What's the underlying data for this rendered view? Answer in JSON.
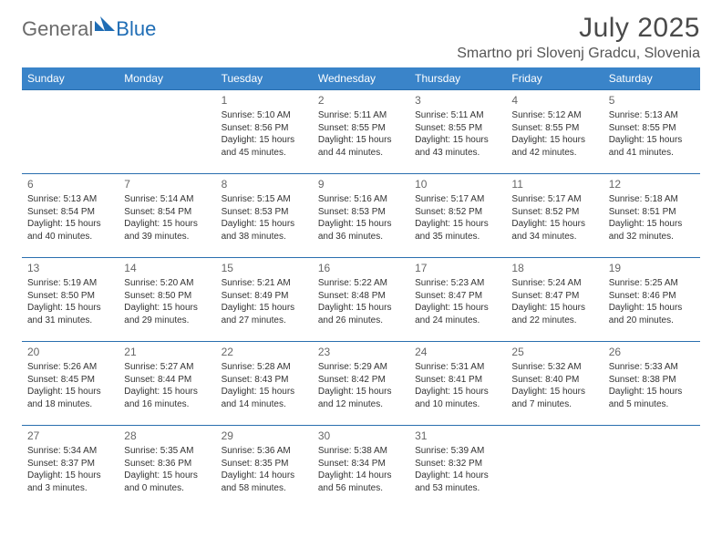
{
  "brand": {
    "part1": "General",
    "part2": "Blue"
  },
  "header": {
    "title": "July 2025",
    "location": "Smartno pri Slovenj Gradcu, Slovenia"
  },
  "colors": {
    "header_bg": "#3a84c9",
    "header_fg": "#ffffff",
    "row_border": "#2a6faf",
    "text": "#333333",
    "daynum": "#676767",
    "logo_gray": "#6b6b6b",
    "logo_blue": "#1f6db5",
    "page_bg": "#ffffff"
  },
  "weekdays": [
    "Sunday",
    "Monday",
    "Tuesday",
    "Wednesday",
    "Thursday",
    "Friday",
    "Saturday"
  ],
  "weeks": [
    [
      null,
      null,
      {
        "n": "1",
        "sr": "Sunrise: 5:10 AM",
        "ss": "Sunset: 8:56 PM",
        "d1": "Daylight: 15 hours",
        "d2": "and 45 minutes."
      },
      {
        "n": "2",
        "sr": "Sunrise: 5:11 AM",
        "ss": "Sunset: 8:55 PM",
        "d1": "Daylight: 15 hours",
        "d2": "and 44 minutes."
      },
      {
        "n": "3",
        "sr": "Sunrise: 5:11 AM",
        "ss": "Sunset: 8:55 PM",
        "d1": "Daylight: 15 hours",
        "d2": "and 43 minutes."
      },
      {
        "n": "4",
        "sr": "Sunrise: 5:12 AM",
        "ss": "Sunset: 8:55 PM",
        "d1": "Daylight: 15 hours",
        "d2": "and 42 minutes."
      },
      {
        "n": "5",
        "sr": "Sunrise: 5:13 AM",
        "ss": "Sunset: 8:55 PM",
        "d1": "Daylight: 15 hours",
        "d2": "and 41 minutes."
      }
    ],
    [
      {
        "n": "6",
        "sr": "Sunrise: 5:13 AM",
        "ss": "Sunset: 8:54 PM",
        "d1": "Daylight: 15 hours",
        "d2": "and 40 minutes."
      },
      {
        "n": "7",
        "sr": "Sunrise: 5:14 AM",
        "ss": "Sunset: 8:54 PM",
        "d1": "Daylight: 15 hours",
        "d2": "and 39 minutes."
      },
      {
        "n": "8",
        "sr": "Sunrise: 5:15 AM",
        "ss": "Sunset: 8:53 PM",
        "d1": "Daylight: 15 hours",
        "d2": "and 38 minutes."
      },
      {
        "n": "9",
        "sr": "Sunrise: 5:16 AM",
        "ss": "Sunset: 8:53 PM",
        "d1": "Daylight: 15 hours",
        "d2": "and 36 minutes."
      },
      {
        "n": "10",
        "sr": "Sunrise: 5:17 AM",
        "ss": "Sunset: 8:52 PM",
        "d1": "Daylight: 15 hours",
        "d2": "and 35 minutes."
      },
      {
        "n": "11",
        "sr": "Sunrise: 5:17 AM",
        "ss": "Sunset: 8:52 PM",
        "d1": "Daylight: 15 hours",
        "d2": "and 34 minutes."
      },
      {
        "n": "12",
        "sr": "Sunrise: 5:18 AM",
        "ss": "Sunset: 8:51 PM",
        "d1": "Daylight: 15 hours",
        "d2": "and 32 minutes."
      }
    ],
    [
      {
        "n": "13",
        "sr": "Sunrise: 5:19 AM",
        "ss": "Sunset: 8:50 PM",
        "d1": "Daylight: 15 hours",
        "d2": "and 31 minutes."
      },
      {
        "n": "14",
        "sr": "Sunrise: 5:20 AM",
        "ss": "Sunset: 8:50 PM",
        "d1": "Daylight: 15 hours",
        "d2": "and 29 minutes."
      },
      {
        "n": "15",
        "sr": "Sunrise: 5:21 AM",
        "ss": "Sunset: 8:49 PM",
        "d1": "Daylight: 15 hours",
        "d2": "and 27 minutes."
      },
      {
        "n": "16",
        "sr": "Sunrise: 5:22 AM",
        "ss": "Sunset: 8:48 PM",
        "d1": "Daylight: 15 hours",
        "d2": "and 26 minutes."
      },
      {
        "n": "17",
        "sr": "Sunrise: 5:23 AM",
        "ss": "Sunset: 8:47 PM",
        "d1": "Daylight: 15 hours",
        "d2": "and 24 minutes."
      },
      {
        "n": "18",
        "sr": "Sunrise: 5:24 AM",
        "ss": "Sunset: 8:47 PM",
        "d1": "Daylight: 15 hours",
        "d2": "and 22 minutes."
      },
      {
        "n": "19",
        "sr": "Sunrise: 5:25 AM",
        "ss": "Sunset: 8:46 PM",
        "d1": "Daylight: 15 hours",
        "d2": "and 20 minutes."
      }
    ],
    [
      {
        "n": "20",
        "sr": "Sunrise: 5:26 AM",
        "ss": "Sunset: 8:45 PM",
        "d1": "Daylight: 15 hours",
        "d2": "and 18 minutes."
      },
      {
        "n": "21",
        "sr": "Sunrise: 5:27 AM",
        "ss": "Sunset: 8:44 PM",
        "d1": "Daylight: 15 hours",
        "d2": "and 16 minutes."
      },
      {
        "n": "22",
        "sr": "Sunrise: 5:28 AM",
        "ss": "Sunset: 8:43 PM",
        "d1": "Daylight: 15 hours",
        "d2": "and 14 minutes."
      },
      {
        "n": "23",
        "sr": "Sunrise: 5:29 AM",
        "ss": "Sunset: 8:42 PM",
        "d1": "Daylight: 15 hours",
        "d2": "and 12 minutes."
      },
      {
        "n": "24",
        "sr": "Sunrise: 5:31 AM",
        "ss": "Sunset: 8:41 PM",
        "d1": "Daylight: 15 hours",
        "d2": "and 10 minutes."
      },
      {
        "n": "25",
        "sr": "Sunrise: 5:32 AM",
        "ss": "Sunset: 8:40 PM",
        "d1": "Daylight: 15 hours",
        "d2": "and 7 minutes."
      },
      {
        "n": "26",
        "sr": "Sunrise: 5:33 AM",
        "ss": "Sunset: 8:38 PM",
        "d1": "Daylight: 15 hours",
        "d2": "and 5 minutes."
      }
    ],
    [
      {
        "n": "27",
        "sr": "Sunrise: 5:34 AM",
        "ss": "Sunset: 8:37 PM",
        "d1": "Daylight: 15 hours",
        "d2": "and 3 minutes."
      },
      {
        "n": "28",
        "sr": "Sunrise: 5:35 AM",
        "ss": "Sunset: 8:36 PM",
        "d1": "Daylight: 15 hours",
        "d2": "and 0 minutes."
      },
      {
        "n": "29",
        "sr": "Sunrise: 5:36 AM",
        "ss": "Sunset: 8:35 PM",
        "d1": "Daylight: 14 hours",
        "d2": "and 58 minutes."
      },
      {
        "n": "30",
        "sr": "Sunrise: 5:38 AM",
        "ss": "Sunset: 8:34 PM",
        "d1": "Daylight: 14 hours",
        "d2": "and 56 minutes."
      },
      {
        "n": "31",
        "sr": "Sunrise: 5:39 AM",
        "ss": "Sunset: 8:32 PM",
        "d1": "Daylight: 14 hours",
        "d2": "and 53 minutes."
      },
      null,
      null
    ]
  ]
}
